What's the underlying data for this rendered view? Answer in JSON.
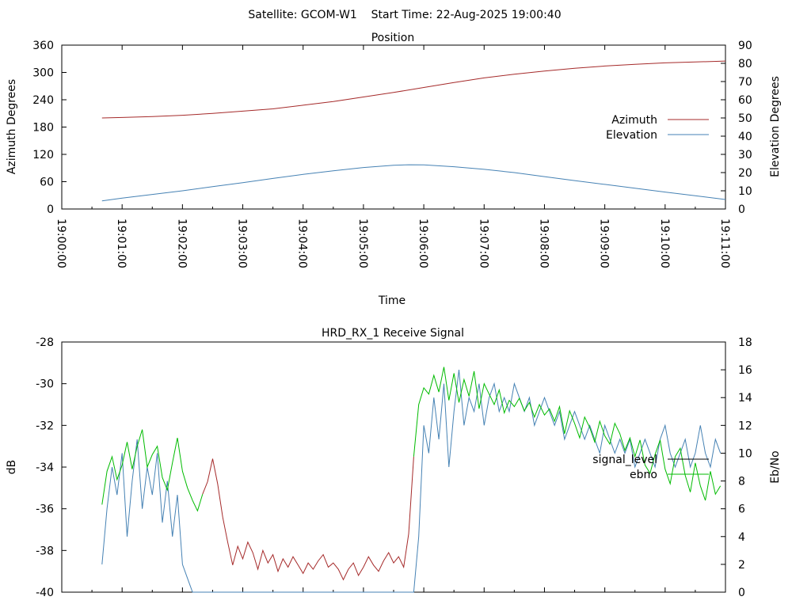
{
  "header": {
    "title": "Satellite: GCOM-W1    Start Time: 22-Aug-2025 19:00:40"
  },
  "chart_data": [
    {
      "type": "line",
      "title": "Position",
      "xlabel": "Time",
      "ylabel": "Azimuth Degrees",
      "y2label": "Elevation Degrees",
      "x_ticks": [
        "19:00:00",
        "19:01:00",
        "19:02:00",
        "19:03:00",
        "19:04:00",
        "19:05:00",
        "19:06:00",
        "19:07:00",
        "19:08:00",
        "19:09:00",
        "19:10:00",
        "19:11:00"
      ],
      "xlim_seconds": [
        0,
        660
      ],
      "ylim": [
        0,
        360
      ],
      "y_ticks": [
        "0",
        "60",
        "120",
        "180",
        "240",
        "300",
        "360"
      ],
      "y2lim": [
        0,
        90
      ],
      "y2_ticks": [
        "0",
        "10",
        "20",
        "30",
        "40",
        "50",
        "60",
        "70",
        "80",
        "90"
      ],
      "legend_position": "right",
      "series": [
        {
          "name": "Azimuth",
          "axis": "y1",
          "color": "#a52a2a",
          "x_seconds": [
            40,
            60,
            90,
            120,
            150,
            180,
            210,
            240,
            270,
            300,
            330,
            360,
            390,
            420,
            450,
            480,
            510,
            540,
            570,
            600,
            630,
            660
          ],
          "values": [
            200,
            201,
            203,
            206,
            210,
            215,
            220,
            228,
            236,
            246,
            256,
            267,
            278,
            288,
            296,
            303,
            309,
            314,
            318,
            321,
            323,
            325
          ]
        },
        {
          "name": "Elevation",
          "axis": "y2",
          "color": "#4682b4",
          "x_seconds": [
            40,
            60,
            90,
            120,
            150,
            180,
            210,
            240,
            270,
            300,
            330,
            345,
            360,
            390,
            420,
            450,
            480,
            510,
            540,
            570,
            600,
            630,
            660
          ],
          "values": [
            4.5,
            6,
            8,
            10,
            12.3,
            14.5,
            16.8,
            19,
            21,
            22.8,
            24,
            24.3,
            24.2,
            23.2,
            21.8,
            20,
            17.8,
            15.6,
            13.5,
            11.4,
            9.3,
            7.3,
            5.2
          ]
        }
      ]
    },
    {
      "type": "line",
      "title": "HRD_RX_1 Receive Signal",
      "ylabel": "dB",
      "y2label": "Eb/No",
      "xlim_seconds": [
        0,
        660
      ],
      "ylim": [
        -40,
        -28
      ],
      "y_ticks": [
        "-40",
        "-38",
        "-36",
        "-34",
        "-32",
        "-30",
        "-28"
      ],
      "y2lim": [
        0,
        18
      ],
      "y2_ticks": [
        "0",
        "2",
        "4",
        "6",
        "8",
        "10",
        "12",
        "14",
        "16",
        "18"
      ],
      "legend_position": "right",
      "series": [
        {
          "name": "signal_level",
          "axis": "y1",
          "color_before": "#00bb00",
          "color_after": "#a52a2a",
          "x_seconds": [
            40,
            45,
            50,
            55,
            60,
            65,
            70,
            75,
            80,
            85,
            90,
            95,
            100,
            105,
            110,
            115,
            120,
            125,
            130,
            135,
            140,
            145,
            150,
            155,
            160,
            165,
            170,
            175,
            180,
            185,
            190,
            195,
            200,
            205,
            210,
            215,
            220,
            225,
            230,
            235,
            240,
            245,
            250,
            255,
            260,
            265,
            270,
            275,
            280,
            285,
            290,
            295,
            300,
            305,
            310,
            315,
            320,
            325,
            330,
            335,
            340,
            345,
            350,
            355,
            360,
            365,
            370,
            375,
            380,
            385,
            390,
            395,
            400,
            405,
            410,
            415,
            420,
            425,
            430,
            435,
            440,
            445,
            450,
            455,
            460,
            465,
            470,
            475,
            480,
            485,
            490,
            495,
            500,
            505,
            510,
            515,
            520,
            525,
            530,
            535,
            540,
            545,
            550,
            555,
            560,
            565,
            570,
            575,
            580,
            585,
            590,
            595,
            600,
            605,
            610,
            615,
            620,
            625,
            630,
            635,
            640,
            645,
            650,
            655
          ],
          "values": [
            -35.8,
            -34.2,
            -33.5,
            -34.6,
            -33.9,
            -32.8,
            -34.1,
            -33.0,
            -32.2,
            -34.0,
            -33.4,
            -33.0,
            -34.5,
            -35.1,
            -33.8,
            -32.6,
            -34.2,
            -35.0,
            -35.6,
            -36.1,
            -35.3,
            -34.7,
            -33.6,
            -34.8,
            -36.4,
            -37.6,
            -38.7,
            -37.8,
            -38.4,
            -37.6,
            -38.1,
            -38.9,
            -38.0,
            -38.6,
            -38.2,
            -39.0,
            -38.4,
            -38.8,
            -38.3,
            -38.7,
            -39.1,
            -38.6,
            -38.9,
            -38.5,
            -38.2,
            -38.8,
            -38.6,
            -38.9,
            -39.4,
            -38.9,
            -38.6,
            -39.2,
            -38.8,
            -38.3,
            -38.7,
            -39.0,
            -38.5,
            -38.1,
            -38.6,
            -38.3,
            -38.8,
            -37.2,
            -33.5,
            -31.0,
            -30.2,
            -30.5,
            -29.6,
            -30.4,
            -29.2,
            -30.8,
            -29.5,
            -30.9,
            -29.8,
            -30.6,
            -29.4,
            -31.2,
            -30.0,
            -30.5,
            -31.0,
            -30.3,
            -31.4,
            -30.8,
            -31.1,
            -30.7,
            -31.3,
            -30.9,
            -31.6,
            -31.0,
            -31.5,
            -31.2,
            -31.8,
            -31.1,
            -32.4,
            -31.3,
            -31.9,
            -32.6,
            -31.6,
            -32.1,
            -32.8,
            -31.8,
            -32.5,
            -32.9,
            -31.9,
            -32.4,
            -33.2,
            -32.6,
            -33.5,
            -32.7,
            -33.9,
            -34.3,
            -33.4,
            -32.7,
            -34.1,
            -34.8,
            -33.5,
            -33.1,
            -34.4,
            -35.2,
            -33.8,
            -34.9,
            -35.6,
            -34.2,
            -35.3,
            -34.9
          ],
          "switch_index": 20
        },
        {
          "name": "ebno",
          "axis": "y2",
          "color": "#4682b4",
          "x_seconds": [
            40,
            45,
            50,
            55,
            60,
            65,
            70,
            75,
            80,
            85,
            90,
            95,
            100,
            105,
            110,
            115,
            120,
            125,
            130,
            135,
            140,
            145,
            150,
            155,
            160,
            165,
            170,
            175,
            180,
            185,
            190,
            195,
            200,
            205,
            210,
            215,
            220,
            225,
            230,
            235,
            240,
            245,
            250,
            255,
            260,
            265,
            270,
            275,
            280,
            285,
            290,
            295,
            300,
            305,
            310,
            315,
            320,
            325,
            330,
            335,
            340,
            345,
            350,
            355,
            360,
            365,
            370,
            375,
            380,
            385,
            390,
            395,
            400,
            405,
            410,
            415,
            420,
            425,
            430,
            435,
            440,
            445,
            450,
            455,
            460,
            465,
            470,
            475,
            480,
            485,
            490,
            495,
            500,
            505,
            510,
            515,
            520,
            525,
            530,
            535,
            540,
            545,
            550,
            555,
            560,
            565,
            570,
            575,
            580,
            585,
            590,
            595,
            600,
            605,
            610,
            615,
            620,
            625,
            630,
            635,
            640,
            645,
            650,
            655
          ],
          "values": [
            2,
            6,
            9,
            7,
            10,
            4,
            8,
            11,
            6,
            9,
            7,
            10,
            5,
            8,
            4,
            7,
            2,
            1,
            0,
            0,
            0,
            0,
            0,
            0,
            0,
            0,
            0,
            0,
            0,
            0,
            0,
            0,
            0,
            0,
            0,
            0,
            0,
            0,
            0,
            0,
            0,
            0,
            0,
            0,
            0,
            0,
            0,
            0,
            0,
            0,
            0,
            0,
            0,
            0,
            0,
            0,
            0,
            0,
            0,
            0,
            0,
            0,
            0,
            4,
            12,
            10,
            14,
            11,
            15,
            9,
            13,
            16,
            12,
            14,
            13,
            15,
            12,
            14,
            15,
            13,
            14,
            13,
            15,
            14,
            13,
            14,
            12,
            13,
            14,
            13,
            12,
            13,
            11,
            12,
            13,
            12,
            11,
            12,
            11,
            10,
            12,
            11,
            10,
            11,
            10,
            11,
            9,
            10,
            11,
            10,
            9,
            11,
            12,
            10,
            9,
            10,
            11,
            9,
            10,
            12,
            10,
            9,
            11,
            10
          ]
        }
      ]
    }
  ]
}
